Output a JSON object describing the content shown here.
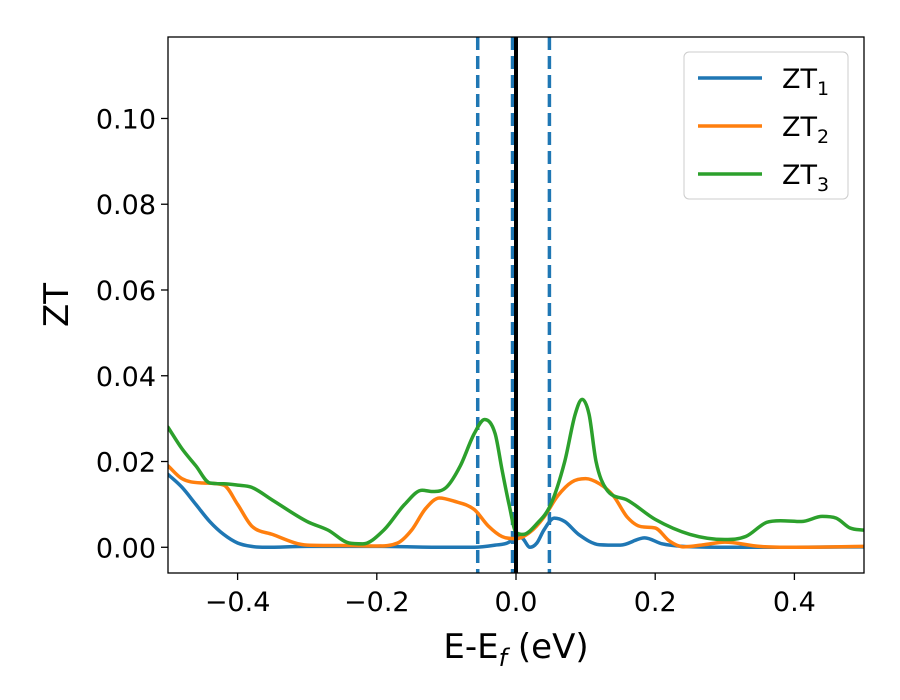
{
  "chart_data": {
    "type": "line",
    "xlabel": {
      "main": "E-E",
      "sub": "f",
      "tail": " (eV)"
    },
    "ylabel": "ZT",
    "xlim": [
      -0.5,
      0.5
    ],
    "ylim": [
      -0.006,
      0.119
    ],
    "xticks": [
      {
        "value": -0.4,
        "label": "−0.4"
      },
      {
        "value": -0.2,
        "label": "−0.2"
      },
      {
        "value": 0.0,
        "label": "0.0"
      },
      {
        "value": 0.2,
        "label": "0.2"
      },
      {
        "value": 0.4,
        "label": "0.4"
      }
    ],
    "yticks": [
      {
        "value": 0.0,
        "label": "0.00"
      },
      {
        "value": 0.02,
        "label": "0.02"
      },
      {
        "value": 0.04,
        "label": "0.04"
      },
      {
        "value": 0.06,
        "label": "0.06"
      },
      {
        "value": 0.08,
        "label": "0.08"
      },
      {
        "value": 0.1,
        "label": "0.10"
      }
    ],
    "grid": false,
    "legend_position": "top-right",
    "vlines": [
      {
        "x": -0.055,
        "style": "dashed",
        "color": "#1f77b4"
      },
      {
        "x": -0.005,
        "style": "dashed",
        "color": "#1f77b4"
      },
      {
        "x": 0.048,
        "style": "dashed",
        "color": "#1f77b4"
      },
      {
        "x": 0.0,
        "style": "solid",
        "color": "#000000"
      }
    ],
    "series": [
      {
        "name": "ZT",
        "sub": "1",
        "color": "#1f77b4",
        "x": [
          -0.5,
          -0.48,
          -0.46,
          -0.44,
          -0.42,
          -0.4,
          -0.38,
          -0.36,
          -0.3,
          -0.2,
          -0.1,
          -0.06,
          -0.03,
          -0.01,
          0.0,
          0.01,
          0.02,
          0.03,
          0.04,
          0.055,
          0.07,
          0.09,
          0.12,
          0.15,
          0.185,
          0.21,
          0.24,
          0.3,
          0.4,
          0.5
        ],
        "y": [
          0.017,
          0.014,
          0.01,
          0.006,
          0.003,
          0.001,
          0.0002,
          0.0,
          0.0002,
          0.0002,
          0.0,
          0.0,
          0.0005,
          0.0012,
          0.003,
          0.002,
          0.0,
          0.001,
          0.004,
          0.0068,
          0.006,
          0.003,
          0.0006,
          0.0005,
          0.0022,
          0.0008,
          0.0002,
          0.0,
          0.0,
          0.0001
        ]
      },
      {
        "name": "ZT",
        "sub": "2",
        "color": "#ff7f0e",
        "x": [
          -0.5,
          -0.48,
          -0.45,
          -0.42,
          -0.4,
          -0.38,
          -0.35,
          -0.3,
          -0.25,
          -0.2,
          -0.17,
          -0.15,
          -0.13,
          -0.11,
          -0.09,
          -0.06,
          -0.04,
          -0.02,
          0.0,
          0.02,
          0.04,
          0.06,
          0.08,
          0.1,
          0.12,
          0.14,
          0.16,
          0.18,
          0.2,
          0.22,
          0.24,
          0.27,
          0.3,
          0.35,
          0.4,
          0.5
        ],
        "y": [
          0.019,
          0.016,
          0.015,
          0.0145,
          0.01,
          0.005,
          0.003,
          0.0005,
          0.0004,
          0.0003,
          0.001,
          0.004,
          0.009,
          0.0115,
          0.0108,
          0.0088,
          0.005,
          0.0025,
          0.002,
          0.0035,
          0.007,
          0.012,
          0.0152,
          0.016,
          0.0148,
          0.012,
          0.007,
          0.0048,
          0.0045,
          0.0015,
          0.0001,
          0.0006,
          0.0012,
          0.0002,
          0.0,
          0.0002
        ]
      },
      {
        "name": "ZT",
        "sub": "3",
        "color": "#2ca02c",
        "x": [
          -0.5,
          -0.48,
          -0.46,
          -0.44,
          -0.42,
          -0.4,
          -0.38,
          -0.35,
          -0.3,
          -0.27,
          -0.24,
          -0.22,
          -0.19,
          -0.16,
          -0.135,
          -0.12,
          -0.1,
          -0.08,
          -0.06,
          -0.045,
          -0.03,
          -0.02,
          -0.01,
          0.0,
          0.01,
          0.03,
          0.05,
          0.07,
          0.085,
          0.095,
          0.105,
          0.115,
          0.13,
          0.16,
          0.2,
          0.25,
          0.3,
          0.33,
          0.36,
          0.38,
          0.41,
          0.44,
          0.46,
          0.48,
          0.5
        ],
        "y": [
          0.028,
          0.023,
          0.019,
          0.015,
          0.0148,
          0.0145,
          0.014,
          0.011,
          0.006,
          0.004,
          0.001,
          0.0008,
          0.004,
          0.01,
          0.0133,
          0.013,
          0.014,
          0.019,
          0.0265,
          0.0298,
          0.0265,
          0.018,
          0.01,
          0.0035,
          0.003,
          0.0055,
          0.01,
          0.02,
          0.031,
          0.0345,
          0.031,
          0.02,
          0.0135,
          0.011,
          0.0065,
          0.003,
          0.0018,
          0.0025,
          0.0058,
          0.0062,
          0.006,
          0.0072,
          0.0068,
          0.0045,
          0.004
        ]
      }
    ]
  }
}
